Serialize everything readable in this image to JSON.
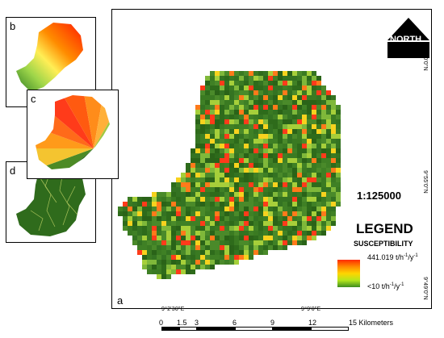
{
  "panels": {
    "a": "a",
    "b": "b",
    "c": "c",
    "d": "d"
  },
  "map": {
    "north_label": "NORTH",
    "scale_ratio": "1:125000",
    "legend_title": "LEGEND",
    "legend_subtitle": "SUSCEPTIBILITY",
    "legend_high": "441.019 t/h",
    "legend_high_sup": "-1",
    "legend_high_tail": "/y",
    "legend_high_sup2": "-1",
    "legend_low": "<10 t/h",
    "legend_low_sup": "-1",
    "legend_low_tail": "/y",
    "legend_low_sup2": "-1",
    "gradient_colors": [
      "#ff2a00",
      "#ff8a00",
      "#ffd500",
      "#b5e61d",
      "#3c8c1e"
    ],
    "coords": {
      "bottom_left": "9°2'30\"E",
      "bottom_right": "9°9'0\"E",
      "right_top": "10°0'0\"N",
      "right_middle": "9°55'0\"N",
      "right_bottom": "9°49'0\"N"
    },
    "scale_bar": {
      "ticks": [
        "0",
        "1.5",
        "3",
        "6",
        "9",
        "12",
        "15 Kilometers"
      ]
    }
  }
}
